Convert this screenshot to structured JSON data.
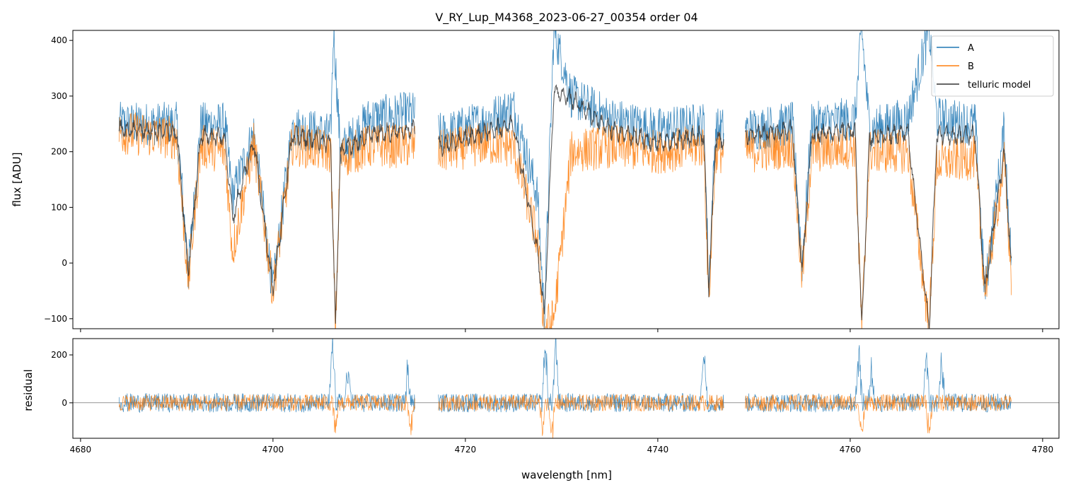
{
  "chart_data": {
    "type": "line",
    "title": "V_RY_Lup_M4368_2023-06-27_00354  order 04",
    "xlabel": "wavelength [nm]",
    "xlim": [
      4679.2,
      4781.7
    ],
    "xticks": [
      4680,
      4700,
      4720,
      4740,
      4760,
      4780
    ],
    "colors": {
      "A": "#1f77b4",
      "B": "#ff7f0e",
      "telluric": "#333333"
    },
    "legend": {
      "position": "top-right",
      "entries": [
        "A",
        "B",
        "telluric model"
      ]
    },
    "gaps": [
      [
        4714.8,
        4717.2
      ],
      [
        4746.9,
        4749.1
      ]
    ],
    "x_range": [
      4684.0,
      4776.8
    ],
    "main_panel": {
      "ylabel": "flux [ADU]",
      "ylim": [
        -118,
        418
      ],
      "yticks": [
        -100,
        0,
        100,
        200,
        300,
        400
      ],
      "series": [
        {
          "name": "A",
          "envelope": [
            [
              4684.0,
              250
            ],
            [
              4690.0,
              250
            ],
            [
              4691.2,
              -15
            ],
            [
              4692.5,
              250
            ],
            [
              4695.0,
              250
            ],
            [
              4695.8,
              120
            ],
            [
              4698.0,
              235
            ],
            [
              4700.0,
              -50
            ],
            [
              4702.0,
              245
            ],
            [
              4706.0,
              230
            ],
            [
              4706.3,
              420
            ],
            [
              4707.0,
              200
            ],
            [
              4710.0,
              260
            ],
            [
              4714.5,
              270
            ],
            [
              4717.5,
              230
            ],
            [
              4722.0,
              255
            ],
            [
              4725.0,
              280
            ],
            [
              4727.5,
              120
            ],
            [
              4728.2,
              -95
            ],
            [
              4729.2,
              420
            ],
            [
              4731.0,
              300
            ],
            [
              4735.0,
              260
            ],
            [
              4740.0,
              240
            ],
            [
              4744.8,
              250
            ],
            [
              4745.3,
              -40
            ],
            [
              4746.0,
              240
            ],
            [
              4749.2,
              240
            ],
            [
              4754.0,
              250
            ],
            [
              4755.0,
              0
            ],
            [
              4756.0,
              250
            ],
            [
              4760.5,
              260
            ],
            [
              4761.2,
              420
            ],
            [
              4762.0,
              240
            ],
            [
              4766.0,
              260
            ],
            [
              4768.2,
              420
            ],
            [
              4769.0,
              260
            ],
            [
              4773.0,
              250
            ],
            [
              4774.0,
              -55
            ],
            [
              4776.0,
              240
            ],
            [
              4776.8,
              -15
            ]
          ]
        },
        {
          "name": "B",
          "envelope": [
            [
              4684.0,
              235
            ],
            [
              4690.0,
              225
            ],
            [
              4691.2,
              -35
            ],
            [
              4692.5,
              210
            ],
            [
              4695.0,
              200
            ],
            [
              4695.8,
              20
            ],
            [
              4698.0,
              215
            ],
            [
              4700.0,
              -50
            ],
            [
              4702.0,
              215
            ],
            [
              4706.0,
              200
            ],
            [
              4706.5,
              -118
            ],
            [
              4707.0,
              190
            ],
            [
              4710.0,
              210
            ],
            [
              4714.5,
              210
            ],
            [
              4717.5,
              200
            ],
            [
              4722.0,
              215
            ],
            [
              4725.0,
              210
            ],
            [
              4727.5,
              40
            ],
            [
              4728.2,
              -118
            ],
            [
              4729.2,
              -100
            ],
            [
              4731.0,
              200
            ],
            [
              4735.0,
              210
            ],
            [
              4740.0,
              200
            ],
            [
              4744.8,
              210
            ],
            [
              4745.3,
              -70
            ],
            [
              4746.0,
              200
            ],
            [
              4749.2,
              200
            ],
            [
              4754.0,
              210
            ],
            [
              4755.0,
              -30
            ],
            [
              4756.0,
              200
            ],
            [
              4760.5,
              210
            ],
            [
              4761.2,
              -118
            ],
            [
              4762.0,
              200
            ],
            [
              4766.0,
              200
            ],
            [
              4768.2,
              -118
            ],
            [
              4769.0,
              180
            ],
            [
              4773.0,
              190
            ],
            [
              4774.0,
              -50
            ],
            [
              4776.0,
              180
            ],
            [
              4776.8,
              -40
            ]
          ]
        },
        {
          "name": "telluric model",
          "envelope": [
            [
              4684.0,
              240
            ],
            [
              4690.0,
              235
            ],
            [
              4691.2,
              -15
            ],
            [
              4692.5,
              230
            ],
            [
              4695.0,
              225
            ],
            [
              4695.8,
              80
            ],
            [
              4698.0,
              220
            ],
            [
              4700.0,
              -50
            ],
            [
              4702.0,
              230
            ],
            [
              4706.0,
              215
            ],
            [
              4706.5,
              -118
            ],
            [
              4707.0,
              200
            ],
            [
              4710.0,
              230
            ],
            [
              4714.5,
              240
            ],
            [
              4717.5,
              210
            ],
            [
              4722.0,
              235
            ],
            [
              4725.0,
              250
            ],
            [
              4727.5,
              20
            ],
            [
              4728.2,
              -95
            ],
            [
              4729.2,
              310
            ],
            [
              4731.0,
              295
            ],
            [
              4735.0,
              240
            ],
            [
              4740.0,
              215
            ],
            [
              4744.8,
              230
            ],
            [
              4745.3,
              -50
            ],
            [
              4746.0,
              220
            ],
            [
              4749.2,
              230
            ],
            [
              4754.0,
              240
            ],
            [
              4755.0,
              -20
            ],
            [
              4756.0,
              230
            ],
            [
              4760.5,
              240
            ],
            [
              4761.2,
              -118
            ],
            [
              4762.0,
              225
            ],
            [
              4766.0,
              235
            ],
            [
              4768.2,
              -118
            ],
            [
              4769.0,
              230
            ],
            [
              4773.0,
              230
            ],
            [
              4774.0,
              -50
            ],
            [
              4776.0,
              200
            ],
            [
              4776.8,
              -20
            ]
          ]
        }
      ]
    },
    "residual_panel": {
      "ylabel": "residual",
      "ylim": [
        -148,
        268
      ],
      "yticks": [
        0,
        200
      ],
      "zero_line": 0,
      "series": [
        {
          "name": "A",
          "noise": 40,
          "spikes": [
            [
              4706.2,
              268
            ],
            [
              4707.8,
              160
            ],
            [
              4714.0,
              160
            ],
            [
              4728.3,
              268
            ],
            [
              4729.4,
              268
            ],
            [
              4744.8,
              268
            ],
            [
              4760.9,
              268
            ],
            [
              4762.2,
              160
            ],
            [
              4767.9,
              268
            ],
            [
              4769.5,
              200
            ]
          ]
        },
        {
          "name": "B",
          "noise": 35,
          "spikes": [
            [
              4706.5,
              -140
            ],
            [
              4714.3,
              -120
            ],
            [
              4728.0,
              -148
            ],
            [
              4729.0,
              -148
            ],
            [
              4761.2,
              -148
            ],
            [
              4768.2,
              -148
            ]
          ]
        }
      ]
    }
  }
}
